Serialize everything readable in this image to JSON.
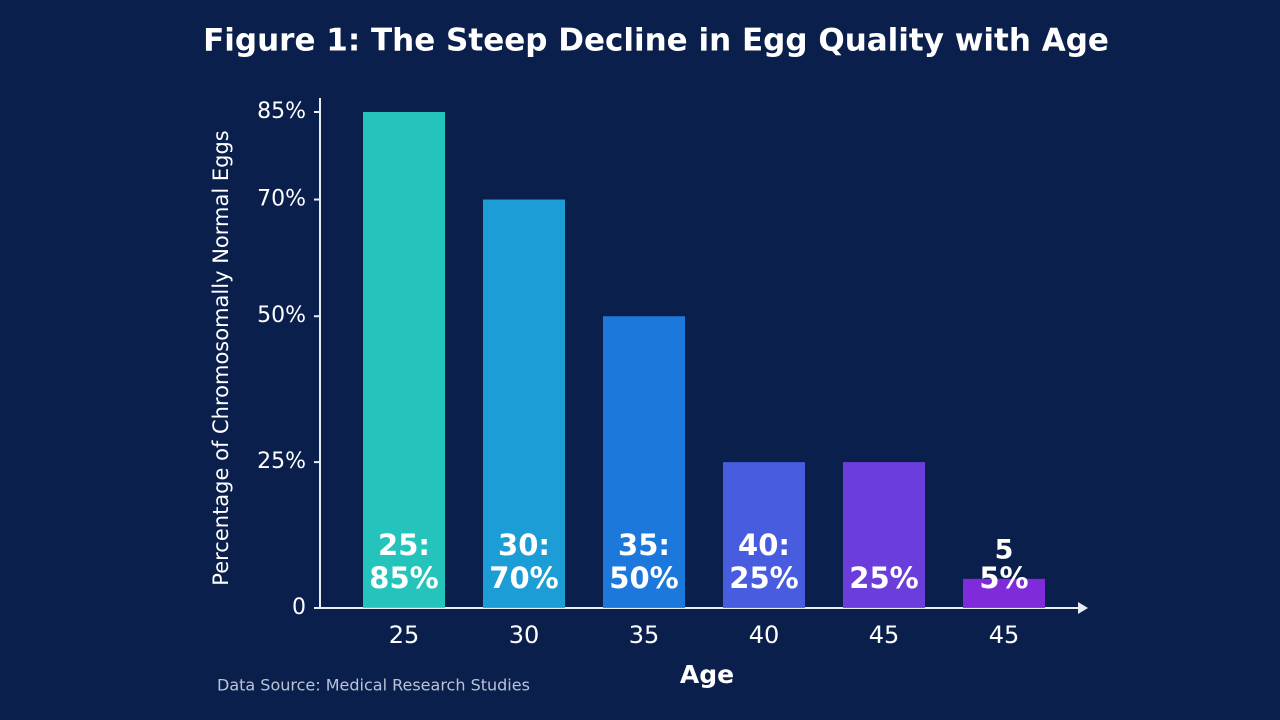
{
  "chart_data": {
    "type": "bar",
    "title": "Figure 1: The Steep Decline in Egg Quality with Age",
    "y_label": "Percentage of Chromosomally Normal Eggs",
    "x_label": "Age",
    "source": "Data Source: Medical Research Studies",
    "categories": [
      "25",
      "30",
      "35",
      "40",
      "45",
      "45"
    ],
    "values": [
      85,
      70,
      50,
      25,
      25,
      5
    ],
    "value_labels": [
      "25:\n85%",
      "30:\n70%",
      "35:\n50%",
      "40:\n25%",
      "25%",
      "5%"
    ],
    "colors": [
      "#27d3c6",
      "#1ea8e2",
      "#1f80e8",
      "#4d62ea",
      "#7440e6",
      "#8a2ce6"
    ],
    "annotation": "5",
    "ylim": [
      0,
      85
    ],
    "yticks": [
      0,
      {
        "value": 25,
        "label": "25%"
      },
      {
        "value": 50,
        "label": "50%"
      },
      {
        "value": 70,
        "label": "70%"
      },
      {
        "value": 85,
        "label": "85%"
      }
    ],
    "grid": false
  }
}
